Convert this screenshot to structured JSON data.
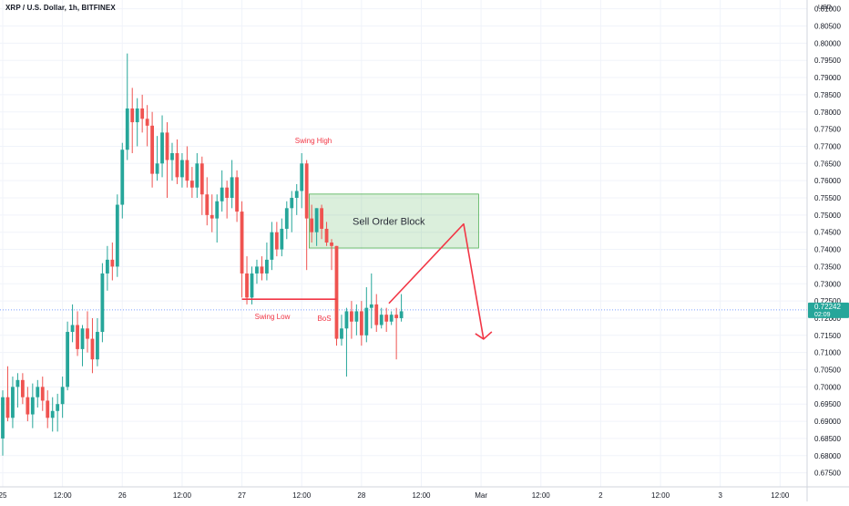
{
  "chart_data": {
    "type": "candlestick",
    "title": "XRP / U.S. Dollar, 1h, BITFINEX",
    "currency_label": "USD",
    "ylim": [
      0.673,
      0.8115
    ],
    "y_ticks": [
      "0.81000",
      "0.80500",
      "0.80000",
      "0.79500",
      "0.79000",
      "0.78500",
      "0.78000",
      "0.77500",
      "0.77000",
      "0.76500",
      "0.76000",
      "0.75500",
      "0.75000",
      "0.74500",
      "0.74000",
      "0.73500",
      "0.73000",
      "0.72500",
      "0.72000",
      "0.71500",
      "0.71000",
      "0.70500",
      "0.70000",
      "0.69500",
      "0.69000",
      "0.68500",
      "0.68000",
      "0.67500"
    ],
    "y_tick_values": [
      0.81,
      0.805,
      0.8,
      0.795,
      0.79,
      0.785,
      0.78,
      0.775,
      0.77,
      0.765,
      0.76,
      0.755,
      0.75,
      0.745,
      0.74,
      0.735,
      0.73,
      0.725,
      0.72,
      0.715,
      0.71,
      0.705,
      0.7,
      0.695,
      0.69,
      0.685,
      0.68,
      0.675
    ],
    "x_ticks": [
      "25",
      "12:00",
      "26",
      "12:00",
      "27",
      "12:00",
      "28",
      "12:00",
      "Mar",
      "12:00",
      "2",
      "12:00",
      "3",
      "12:00"
    ],
    "x_tick_hours": [
      0,
      12,
      24,
      36,
      48,
      60,
      72,
      84,
      96,
      108,
      120,
      132,
      144,
      156
    ],
    "last_price": {
      "value": 0.72242,
      "label": "0.72242",
      "countdown": "02:09"
    },
    "up_color": "#26a69a",
    "down_color": "#ef5350",
    "annotation_color": "#f23645",
    "candles": [
      {
        "t": 0,
        "o": 0.685,
        "h": 0.699,
        "l": 0.68,
        "c": 0.697
      },
      {
        "t": 1,
        "o": 0.697,
        "h": 0.706,
        "l": 0.69,
        "c": 0.691
      },
      {
        "t": 2,
        "o": 0.691,
        "h": 0.703,
        "l": 0.688,
        "c": 0.7
      },
      {
        "t": 3,
        "o": 0.7,
        "h": 0.704,
        "l": 0.694,
        "c": 0.702
      },
      {
        "t": 4,
        "o": 0.702,
        "h": 0.704,
        "l": 0.695,
        "c": 0.697
      },
      {
        "t": 5,
        "o": 0.697,
        "h": 0.7,
        "l": 0.69,
        "c": 0.692
      },
      {
        "t": 6,
        "o": 0.692,
        "h": 0.701,
        "l": 0.688,
        "c": 0.697
      },
      {
        "t": 7,
        "o": 0.697,
        "h": 0.702,
        "l": 0.694,
        "c": 0.7
      },
      {
        "t": 8,
        "o": 0.7,
        "h": 0.703,
        "l": 0.693,
        "c": 0.696
      },
      {
        "t": 9,
        "o": 0.696,
        "h": 0.699,
        "l": 0.688,
        "c": 0.691
      },
      {
        "t": 10,
        "o": 0.691,
        "h": 0.697,
        "l": 0.687,
        "c": 0.693
      },
      {
        "t": 11,
        "o": 0.693,
        "h": 0.698,
        "l": 0.687,
        "c": 0.695
      },
      {
        "t": 12,
        "o": 0.695,
        "h": 0.703,
        "l": 0.691,
        "c": 0.7
      },
      {
        "t": 13,
        "o": 0.7,
        "h": 0.719,
        "l": 0.699,
        "c": 0.716
      },
      {
        "t": 14,
        "o": 0.716,
        "h": 0.724,
        "l": 0.713,
        "c": 0.718
      },
      {
        "t": 15,
        "o": 0.718,
        "h": 0.722,
        "l": 0.709,
        "c": 0.711
      },
      {
        "t": 16,
        "o": 0.711,
        "h": 0.718,
        "l": 0.706,
        "c": 0.717
      },
      {
        "t": 17,
        "o": 0.717,
        "h": 0.722,
        "l": 0.71,
        "c": 0.714
      },
      {
        "t": 18,
        "o": 0.714,
        "h": 0.72,
        "l": 0.704,
        "c": 0.708
      },
      {
        "t": 19,
        "o": 0.708,
        "h": 0.72,
        "l": 0.706,
        "c": 0.716
      },
      {
        "t": 20,
        "o": 0.716,
        "h": 0.736,
        "l": 0.713,
        "c": 0.733
      },
      {
        "t": 21,
        "o": 0.733,
        "h": 0.741,
        "l": 0.728,
        "c": 0.737
      },
      {
        "t": 22,
        "o": 0.737,
        "h": 0.742,
        "l": 0.731,
        "c": 0.735
      },
      {
        "t": 23,
        "o": 0.735,
        "h": 0.756,
        "l": 0.732,
        "c": 0.753
      },
      {
        "t": 24,
        "o": 0.753,
        "h": 0.771,
        "l": 0.749,
        "c": 0.769
      },
      {
        "t": 25,
        "o": 0.769,
        "h": 0.797,
        "l": 0.766,
        "c": 0.781
      },
      {
        "t": 26,
        "o": 0.781,
        "h": 0.787,
        "l": 0.768,
        "c": 0.777
      },
      {
        "t": 27,
        "o": 0.777,
        "h": 0.784,
        "l": 0.77,
        "c": 0.781
      },
      {
        "t": 28,
        "o": 0.781,
        "h": 0.785,
        "l": 0.774,
        "c": 0.778
      },
      {
        "t": 29,
        "o": 0.778,
        "h": 0.782,
        "l": 0.77,
        "c": 0.776
      },
      {
        "t": 30,
        "o": 0.776,
        "h": 0.78,
        "l": 0.758,
        "c": 0.762
      },
      {
        "t": 31,
        "o": 0.762,
        "h": 0.773,
        "l": 0.76,
        "c": 0.765
      },
      {
        "t": 32,
        "o": 0.765,
        "h": 0.779,
        "l": 0.761,
        "c": 0.774
      },
      {
        "t": 33,
        "o": 0.774,
        "h": 0.777,
        "l": 0.755,
        "c": 0.766
      },
      {
        "t": 34,
        "o": 0.766,
        "h": 0.771,
        "l": 0.76,
        "c": 0.768
      },
      {
        "t": 35,
        "o": 0.768,
        "h": 0.772,
        "l": 0.759,
        "c": 0.761
      },
      {
        "t": 36,
        "o": 0.761,
        "h": 0.768,
        "l": 0.758,
        "c": 0.766
      },
      {
        "t": 37,
        "o": 0.766,
        "h": 0.77,
        "l": 0.758,
        "c": 0.76
      },
      {
        "t": 38,
        "o": 0.76,
        "h": 0.764,
        "l": 0.755,
        "c": 0.758
      },
      {
        "t": 39,
        "o": 0.758,
        "h": 0.768,
        "l": 0.755,
        "c": 0.765
      },
      {
        "t": 40,
        "o": 0.765,
        "h": 0.767,
        "l": 0.75,
        "c": 0.756
      },
      {
        "t": 41,
        "o": 0.756,
        "h": 0.761,
        "l": 0.747,
        "c": 0.75
      },
      {
        "t": 42,
        "o": 0.75,
        "h": 0.756,
        "l": 0.745,
        "c": 0.749
      },
      {
        "t": 43,
        "o": 0.749,
        "h": 0.756,
        "l": 0.742,
        "c": 0.754
      },
      {
        "t": 44,
        "o": 0.754,
        "h": 0.763,
        "l": 0.751,
        "c": 0.758
      },
      {
        "t": 45,
        "o": 0.758,
        "h": 0.76,
        "l": 0.749,
        "c": 0.755
      },
      {
        "t": 46,
        "o": 0.755,
        "h": 0.766,
        "l": 0.752,
        "c": 0.761
      },
      {
        "t": 47,
        "o": 0.761,
        "h": 0.763,
        "l": 0.748,
        "c": 0.751
      },
      {
        "t": 48,
        "o": 0.751,
        "h": 0.754,
        "l": 0.726,
        "c": 0.733
      },
      {
        "t": 49,
        "o": 0.733,
        "h": 0.738,
        "l": 0.724,
        "c": 0.726
      },
      {
        "t": 50,
        "o": 0.726,
        "h": 0.735,
        "l": 0.724,
        "c": 0.733
      },
      {
        "t": 51,
        "o": 0.733,
        "h": 0.737,
        "l": 0.73,
        "c": 0.735
      },
      {
        "t": 52,
        "o": 0.735,
        "h": 0.738,
        "l": 0.731,
        "c": 0.733
      },
      {
        "t": 53,
        "o": 0.733,
        "h": 0.742,
        "l": 0.731,
        "c": 0.737
      },
      {
        "t": 54,
        "o": 0.737,
        "h": 0.748,
        "l": 0.734,
        "c": 0.745
      },
      {
        "t": 55,
        "o": 0.745,
        "h": 0.748,
        "l": 0.738,
        "c": 0.74
      },
      {
        "t": 56,
        "o": 0.74,
        "h": 0.749,
        "l": 0.738,
        "c": 0.746
      },
      {
        "t": 57,
        "o": 0.746,
        "h": 0.754,
        "l": 0.743,
        "c": 0.752
      },
      {
        "t": 58,
        "o": 0.752,
        "h": 0.757,
        "l": 0.745,
        "c": 0.755
      },
      {
        "t": 59,
        "o": 0.755,
        "h": 0.759,
        "l": 0.75,
        "c": 0.757
      },
      {
        "t": 60,
        "o": 0.757,
        "h": 0.768,
        "l": 0.752,
        "c": 0.765
      },
      {
        "t": 61,
        "o": 0.765,
        "h": 0.766,
        "l": 0.734,
        "c": 0.749
      },
      {
        "t": 62,
        "o": 0.749,
        "h": 0.753,
        "l": 0.742,
        "c": 0.745
      },
      {
        "t": 63,
        "o": 0.745,
        "h": 0.752,
        "l": 0.741,
        "c": 0.752
      },
      {
        "t": 64,
        "o": 0.752,
        "h": 0.753,
        "l": 0.743,
        "c": 0.746
      },
      {
        "t": 65,
        "o": 0.746,
        "h": 0.748,
        "l": 0.741,
        "c": 0.742
      },
      {
        "t": 66,
        "o": 0.742,
        "h": 0.743,
        "l": 0.734,
        "c": 0.741
      },
      {
        "t": 67,
        "o": 0.741,
        "h": 0.741,
        "l": 0.712,
        "c": 0.714
      },
      {
        "t": 68,
        "o": 0.714,
        "h": 0.721,
        "l": 0.712,
        "c": 0.717
      },
      {
        "t": 69,
        "o": 0.717,
        "h": 0.723,
        "l": 0.703,
        "c": 0.722
      },
      {
        "t": 70,
        "o": 0.722,
        "h": 0.725,
        "l": 0.714,
        "c": 0.719
      },
      {
        "t": 71,
        "o": 0.719,
        "h": 0.724,
        "l": 0.715,
        "c": 0.722
      },
      {
        "t": 72,
        "o": 0.722,
        "h": 0.725,
        "l": 0.712,
        "c": 0.715
      },
      {
        "t": 73,
        "o": 0.715,
        "h": 0.729,
        "l": 0.713,
        "c": 0.723
      },
      {
        "t": 74,
        "o": 0.723,
        "h": 0.733,
        "l": 0.717,
        "c": 0.724
      },
      {
        "t": 75,
        "o": 0.724,
        "h": 0.727,
        "l": 0.716,
        "c": 0.718
      },
      {
        "t": 76,
        "o": 0.718,
        "h": 0.723,
        "l": 0.717,
        "c": 0.721
      },
      {
        "t": 77,
        "o": 0.721,
        "h": 0.723,
        "l": 0.716,
        "c": 0.719
      },
      {
        "t": 78,
        "o": 0.719,
        "h": 0.722,
        "l": 0.718,
        "c": 0.721
      },
      {
        "t": 79,
        "o": 0.721,
        "h": 0.723,
        "l": 0.708,
        "c": 0.72
      },
      {
        "t": 80,
        "o": 0.72,
        "h": 0.727,
        "l": 0.719,
        "c": 0.722
      }
    ],
    "annotations": {
      "swing_high": "Swing High",
      "swing_low": "Swing Low",
      "bos": "BoS",
      "order_block": "Sell Order Block"
    },
    "order_block": {
      "t_start": 61.5,
      "t_end": 95.5,
      "top": 0.7561,
      "bottom": 0.7404
    },
    "bos_line": {
      "t_start": 48,
      "t_end": 67,
      "price": 0.7255
    },
    "projection": [
      {
        "t": 77.5,
        "price": 0.7243
      },
      {
        "t": 92.5,
        "price": 0.7474
      },
      {
        "t": 96.5,
        "price": 0.7139
      }
    ]
  }
}
